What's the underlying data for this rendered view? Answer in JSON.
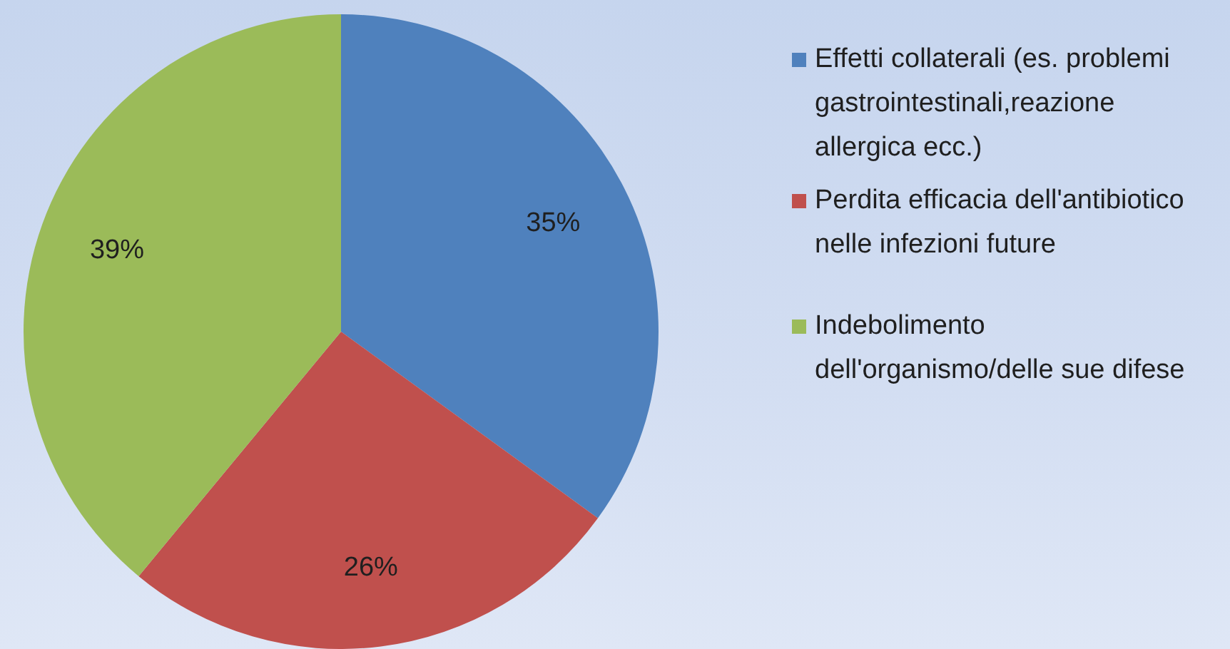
{
  "chart_data": {
    "type": "pie",
    "categories": [
      "Effetti collaterali (es. problemi gastrointestinali,reazione allergica ecc.)",
      "Perdita efficacia dell'antibiotico nelle infezioni future",
      "Indebolimento dell'organismo/delle sue difese"
    ],
    "values": [
      35,
      26,
      39
    ],
    "colors": [
      "#4f81bd",
      "#c0504d",
      "#9bbb59"
    ],
    "value_labels": [
      "35%",
      "26%",
      "39%"
    ],
    "legend": "right"
  }
}
